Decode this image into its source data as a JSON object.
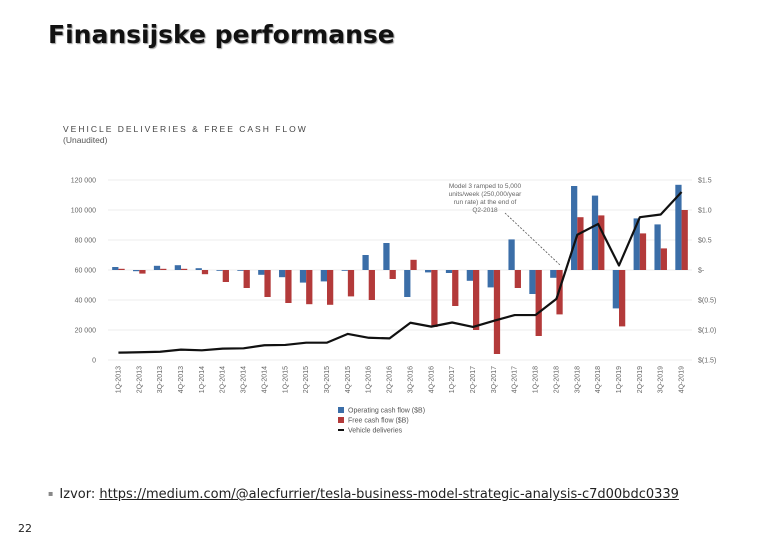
{
  "slide": {
    "title": "Finansijske performanse",
    "page_number": "22",
    "source_prefix": "Izvor:",
    "source_link": "https://medium.com/@alecfurrier/tesla-business-model-strategic-analysis-c7d00bdc0339"
  },
  "chart_data": {
    "type": "bar",
    "title": "VEHICLE DELIVERIES & FREE CASH FLOW",
    "subtitle": "(Unaudited)",
    "categories": [
      "1Q-2013",
      "2Q-2013",
      "3Q-2013",
      "4Q-2013",
      "1Q-2014",
      "2Q-2014",
      "3Q-2014",
      "4Q-2014",
      "1Q-2015",
      "2Q-2015",
      "3Q-2015",
      "4Q-2015",
      "1Q-2016",
      "2Q-2016",
      "3Q-2016",
      "4Q-2016",
      "1Q-2017",
      "2Q-2017",
      "3Q-2017",
      "4Q-2017",
      "1Q-2018",
      "2Q-2018",
      "3Q-2018",
      "4Q-2018",
      "1Q-2019",
      "2Q-2019",
      "3Q-2019",
      "4Q-2019"
    ],
    "y_left": {
      "min": 0,
      "max": 120000,
      "ticks": [
        "0",
        "20 000",
        "40 000",
        "60 000",
        "80 000",
        "100 000",
        "120 000"
      ]
    },
    "y_right": {
      "min": -1.5,
      "max": 1.5,
      "ticks": [
        "$(1.5)",
        "$(1.0)",
        "$(0.5)",
        "$-",
        "$0.5",
        "$1.0",
        "$1.5"
      ]
    },
    "series": [
      {
        "name": "Operating cash flow ($B)",
        "color": "#3b6ea8",
        "axis": "right",
        "values": [
          0.05,
          -0.02,
          0.07,
          0.08,
          0.03,
          -0.01,
          -0.01,
          -0.08,
          -0.12,
          -0.21,
          -0.19,
          -0.01,
          0.25,
          0.45,
          -0.45,
          -0.04,
          -0.05,
          -0.18,
          -0.29,
          0.51,
          -0.4,
          -0.13,
          1.4,
          1.24,
          -0.64,
          0.86,
          0.76,
          1.42
        ]
      },
      {
        "name": "Free cash flow ($B)",
        "color": "#b33a3a",
        "axis": "right",
        "values": [
          0.02,
          -0.06,
          0.02,
          0.02,
          -0.07,
          -0.2,
          -0.3,
          -0.45,
          -0.55,
          -0.57,
          -0.58,
          -0.44,
          -0.5,
          -0.15,
          0.17,
          -0.95,
          -0.6,
          -1.0,
          -1.4,
          -0.3,
          -1.1,
          -0.74,
          0.88,
          0.91,
          -0.94,
          0.61,
          0.36,
          1.0
        ]
      },
      {
        "name": "Vehicle deliveries",
        "color": "#111111",
        "axis": "left",
        "type": "line",
        "values": [
          4900,
          5150,
          5500,
          6900,
          6457,
          7579,
          7785,
          9834,
          10030,
          11532,
          11603,
          17400,
          14820,
          14402,
          24821,
          22252,
          25000,
          22026,
          26137,
          29967,
          29980,
          40740,
          83500,
          90700,
          63000,
          95200,
          97000,
          112000
        ]
      }
    ],
    "annotation": "Model 3 ramped to 5,000 units/week (250,000/year run rate) at the end of Q2-2018",
    "legend": [
      "Operating cash flow ($B)",
      "Free cash flow ($B)",
      "Vehicle deliveries"
    ]
  }
}
